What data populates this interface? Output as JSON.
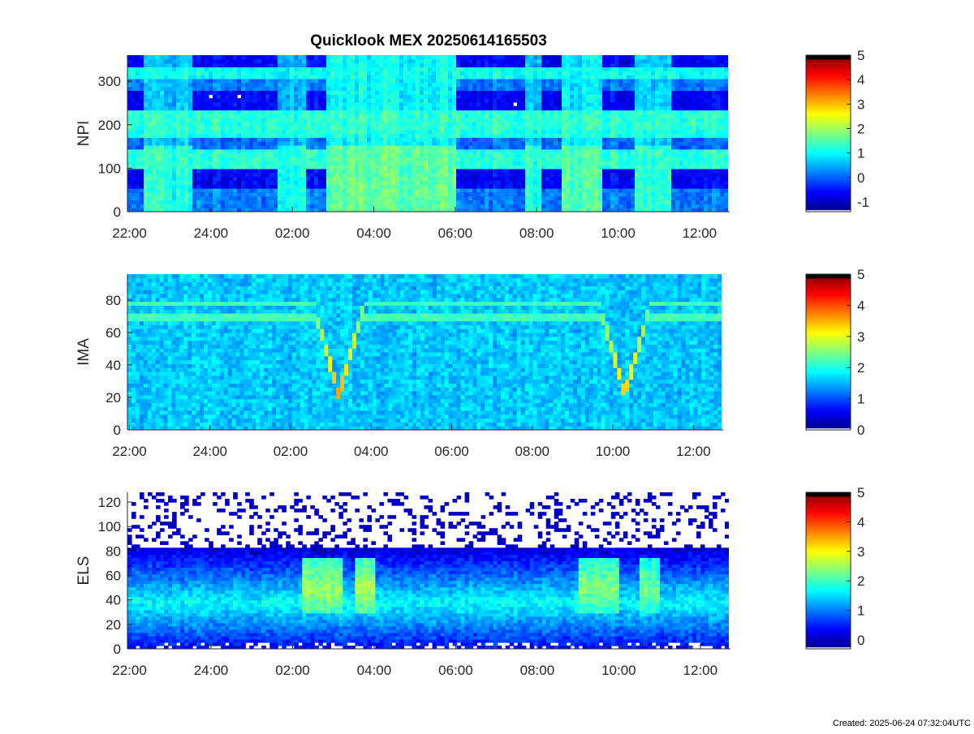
{
  "title": "Quicklook MEX 20250614165503",
  "created": "Created: 2025-06-24 07:32:04UTC",
  "chart_data": [
    {
      "type": "heatmap",
      "instrument": "NPI",
      "ylabel": "NPI",
      "ylim": [
        0,
        360
      ],
      "yticks": [
        0,
        100,
        200,
        300
      ],
      "xticks": [
        "22:00",
        "24:00",
        "02:00",
        "04:00",
        "06:00",
        "08:00",
        "10:00",
        "12:00"
      ],
      "xlim_hours": [
        21.95,
        36.7
      ],
      "colorbar": {
        "min": -1.4,
        "max": 5,
        "ticks": [
          -1,
          0,
          1,
          2,
          3,
          4,
          5
        ]
      },
      "bands": [
        {
          "y0": 0,
          "y1": 55,
          "level": 0.2
        },
        {
          "y0": 55,
          "y1": 95,
          "level": -0.6
        },
        {
          "y0": 95,
          "y1": 140,
          "level": 1.3
        },
        {
          "y0": 140,
          "y1": 170,
          "level": 0.1
        },
        {
          "y0": 170,
          "y1": 190,
          "level": 1.2
        },
        {
          "y0": 190,
          "y1": 230,
          "level": 1.3
        },
        {
          "y0": 230,
          "y1": 275,
          "level": -0.6
        },
        {
          "y0": 275,
          "y1": 305,
          "level": 0.2
        },
        {
          "y0": 305,
          "y1": 330,
          "level": 1.1
        },
        {
          "y0": 330,
          "y1": 360,
          "level": -0.6
        }
      ],
      "events": [
        {
          "t0": 22.3,
          "t1": 23.5,
          "level": 1.2
        },
        {
          "t0": 1.6,
          "t1": 2.3,
          "level": 1.2
        },
        {
          "t0": 2.8,
          "t1": 6.0,
          "level": 1.6
        },
        {
          "t0": 7.7,
          "t1": 8.1,
          "level": 1.2
        },
        {
          "t0": 8.6,
          "t1": 9.6,
          "level": 1.5
        },
        {
          "t0": 10.4,
          "t1": 11.3,
          "level": 1.3
        }
      ]
    },
    {
      "type": "heatmap",
      "instrument": "IMA",
      "ylabel": "IMA",
      "ylim": [
        0,
        96
      ],
      "yticks": [
        0,
        20,
        40,
        60,
        80
      ],
      "xticks": [
        "22:00",
        "24:00",
        "02:00",
        "04:00",
        "06:00",
        "08:00",
        "10:00",
        "12:00"
      ],
      "xlim_hours": [
        21.95,
        36.7
      ],
      "colorbar": {
        "min": 0,
        "max": 5,
        "ticks": [
          0,
          1,
          2,
          3,
          4,
          5
        ]
      },
      "background_level": 1.6,
      "lines": [
        {
          "y": 78,
          "level": 2.2
        },
        {
          "y": 70,
          "level": 2.2
        }
      ],
      "dips": [
        {
          "t0": 2.6,
          "t1": 3.8,
          "bottom": 22,
          "peak_level": 3.6
        },
        {
          "t0": 9.7,
          "t1": 10.9,
          "bottom": 22,
          "peak_level": 3.4
        }
      ]
    },
    {
      "type": "heatmap",
      "instrument": "ELS",
      "ylabel": "ELS",
      "ylim": [
        0,
        128
      ],
      "yticks": [
        0,
        20,
        40,
        60,
        80,
        100,
        120
      ],
      "xticks": [
        "22:00",
        "24:00",
        "02:00",
        "04:00",
        "06:00",
        "08:00",
        "10:00",
        "12:00"
      ],
      "xlim_hours": [
        21.95,
        36.7
      ],
      "colorbar": {
        "min": -0.3,
        "max": 5,
        "ticks": [
          0,
          1,
          2,
          3,
          4,
          5
        ]
      },
      "core_y": 38,
      "core_level": 1.7,
      "edge_level": 0.4,
      "events": [
        {
          "t0": 2.2,
          "t1": 3.2,
          "level": 2.5
        },
        {
          "t0": 3.5,
          "t1": 4.0,
          "level": 2.6
        },
        {
          "t0": 9.0,
          "t1": 10.0,
          "level": 2.4
        },
        {
          "t0": 10.5,
          "t1": 11.0,
          "level": 2.3
        }
      ]
    }
  ]
}
